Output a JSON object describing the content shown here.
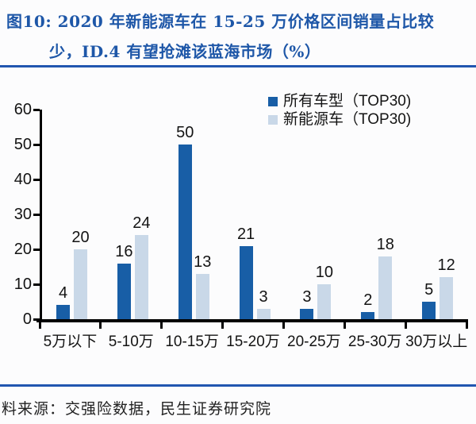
{
  "title": {
    "line1": "图10: 2020 年新能源车在 15-25 万价格区间销量占比较",
    "line2": "少，ID.4 有望抢滩该蓝海市场（%）"
  },
  "source": "料来源：交强险数据，民生证券研究院",
  "colors": {
    "title_blue": "#1E57A8",
    "divider_blue": "#2156B0",
    "axis_black": "#000000",
    "label_black": "#141414",
    "background": "#FCFCFD"
  },
  "chart_data": {
    "type": "bar",
    "categories": [
      "5万以下",
      "5-10万",
      "10-15万",
      "15-20万",
      "20-25万",
      "25-30万",
      "30万以上"
    ],
    "series": [
      {
        "name": "所有车型（TOP30)",
        "color": "#185EA6",
        "values": [
          4,
          16,
          50,
          21,
          3,
          2,
          5
        ]
      },
      {
        "name": "新能源车（TOP30)",
        "color": "#C9D8E8",
        "values": [
          20,
          24,
          13,
          3,
          10,
          18,
          12
        ]
      }
    ],
    "title": "2020 年新能源车在 15-25 万价格区间销量占比较少，ID.4 有望抢滩该蓝海市场（%）",
    "xlabel": "",
    "ylabel": "",
    "ylim": [
      0,
      60
    ],
    "yticks": [
      0,
      10,
      20,
      30,
      40,
      50,
      60
    ],
    "grid": false,
    "legend_position": "top-right",
    "data_labels": true
  }
}
